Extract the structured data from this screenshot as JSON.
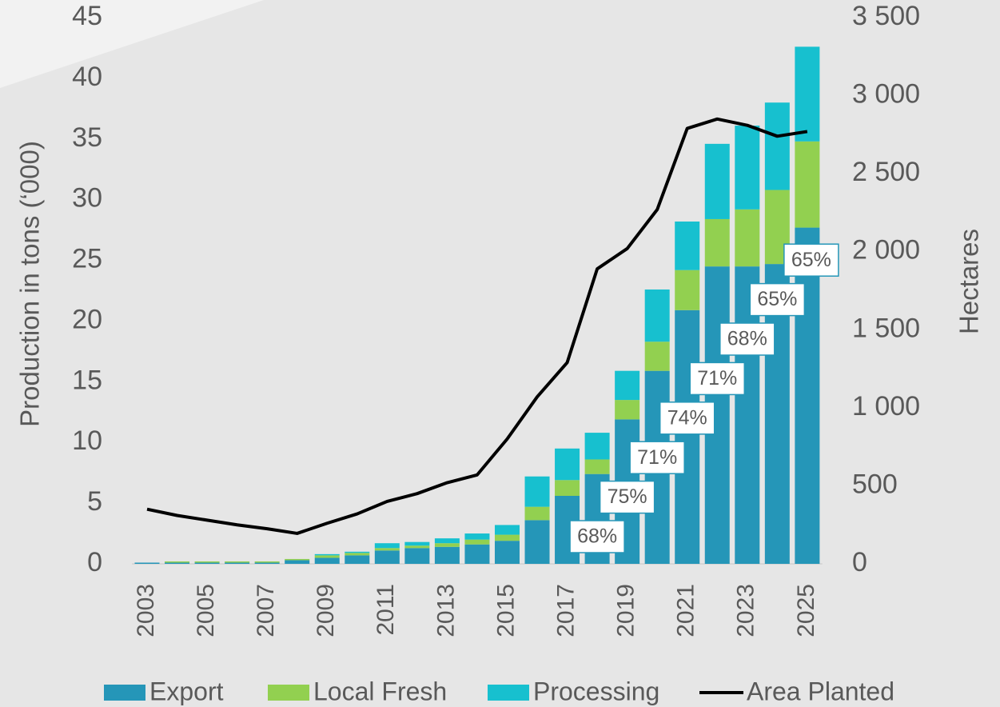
{
  "chart_data": {
    "type": "bar",
    "stacked": true,
    "categories": [
      "2003",
      null,
      "2005",
      null,
      "2007",
      null,
      "2009",
      null,
      "2011",
      null,
      "2013",
      null,
      "2015",
      null,
      "2017",
      null,
      "2019",
      null,
      "2021",
      null,
      "2023",
      null,
      "2025"
    ],
    "series": [
      {
        "name": "Export",
        "color": "#2596b8",
        "values": [
          0.1,
          0.1,
          0.1,
          0.1,
          0.1,
          0.3,
          0.5,
          0.7,
          1.1,
          1.3,
          1.4,
          1.6,
          1.9,
          3.6,
          5.6,
          7.4,
          11.9,
          15.9,
          20.9,
          24.5,
          24.5,
          24.7,
          27.7
        ]
      },
      {
        "name": "Local Fresh",
        "color": "#92d050",
        "values": [
          0,
          0.1,
          0.1,
          0.1,
          0.1,
          0.1,
          0.2,
          0.2,
          0.2,
          0.2,
          0.3,
          0.4,
          0.5,
          1.1,
          1.3,
          1.2,
          1.6,
          2.4,
          3.3,
          3.9,
          4.7,
          6.1,
          7.1
        ]
      },
      {
        "name": "Processing",
        "color": "#17c0cf",
        "values": [
          0,
          0,
          0,
          0,
          0,
          0,
          0.1,
          0.1,
          0.4,
          0.3,
          0.4,
          0.5,
          0.8,
          2.5,
          2.6,
          2.2,
          2.4,
          4.3,
          4.0,
          6.2,
          6.9,
          7.2,
          7.8
        ]
      },
      {
        "name": "Area Planted",
        "color": "#000000",
        "type": "line",
        "axis": "y2",
        "values": [
          350,
          310,
          280,
          250,
          225,
          195,
          260,
          320,
          400,
          450,
          520,
          570,
          800,
          1070,
          1290,
          1890,
          2020,
          2270,
          2790,
          2850,
          2810,
          2740,
          2770
        ]
      }
    ],
    "export_share": {
      "values": [
        null,
        null,
        null,
        null,
        null,
        null,
        null,
        null,
        null,
        null,
        null,
        null,
        null,
        null,
        null,
        68,
        75,
        71,
        74,
        71,
        68,
        65,
        65
      ],
      "value_labels": [
        null,
        null,
        null,
        null,
        null,
        null,
        null,
        null,
        null,
        null,
        null,
        null,
        null,
        null,
        null,
        "68%",
        "75%",
        "71%",
        "74%",
        "71%",
        "68%",
        "65%",
        "65%"
      ]
    },
    "ylabel": "Production in tons (‘000)",
    "y2label": "Hectares",
    "ylim": [
      0,
      45
    ],
    "yticks": [
      0,
      5,
      10,
      15,
      20,
      25,
      30,
      35,
      40,
      45
    ],
    "y2lim": [
      0,
      3500
    ],
    "y2ticks": [
      0,
      500,
      {
        "value": 1000,
        "label": "1 000"
      },
      {
        "value": 1500,
        "label": "1 500"
      },
      {
        "value": 2000,
        "label": "2 000"
      },
      {
        "value": 2500,
        "label": "2 500"
      },
      {
        "value": 3000,
        "label": "3 000"
      },
      {
        "value": 3500,
        "label": "3 500"
      }
    ],
    "legend": "bottom"
  }
}
